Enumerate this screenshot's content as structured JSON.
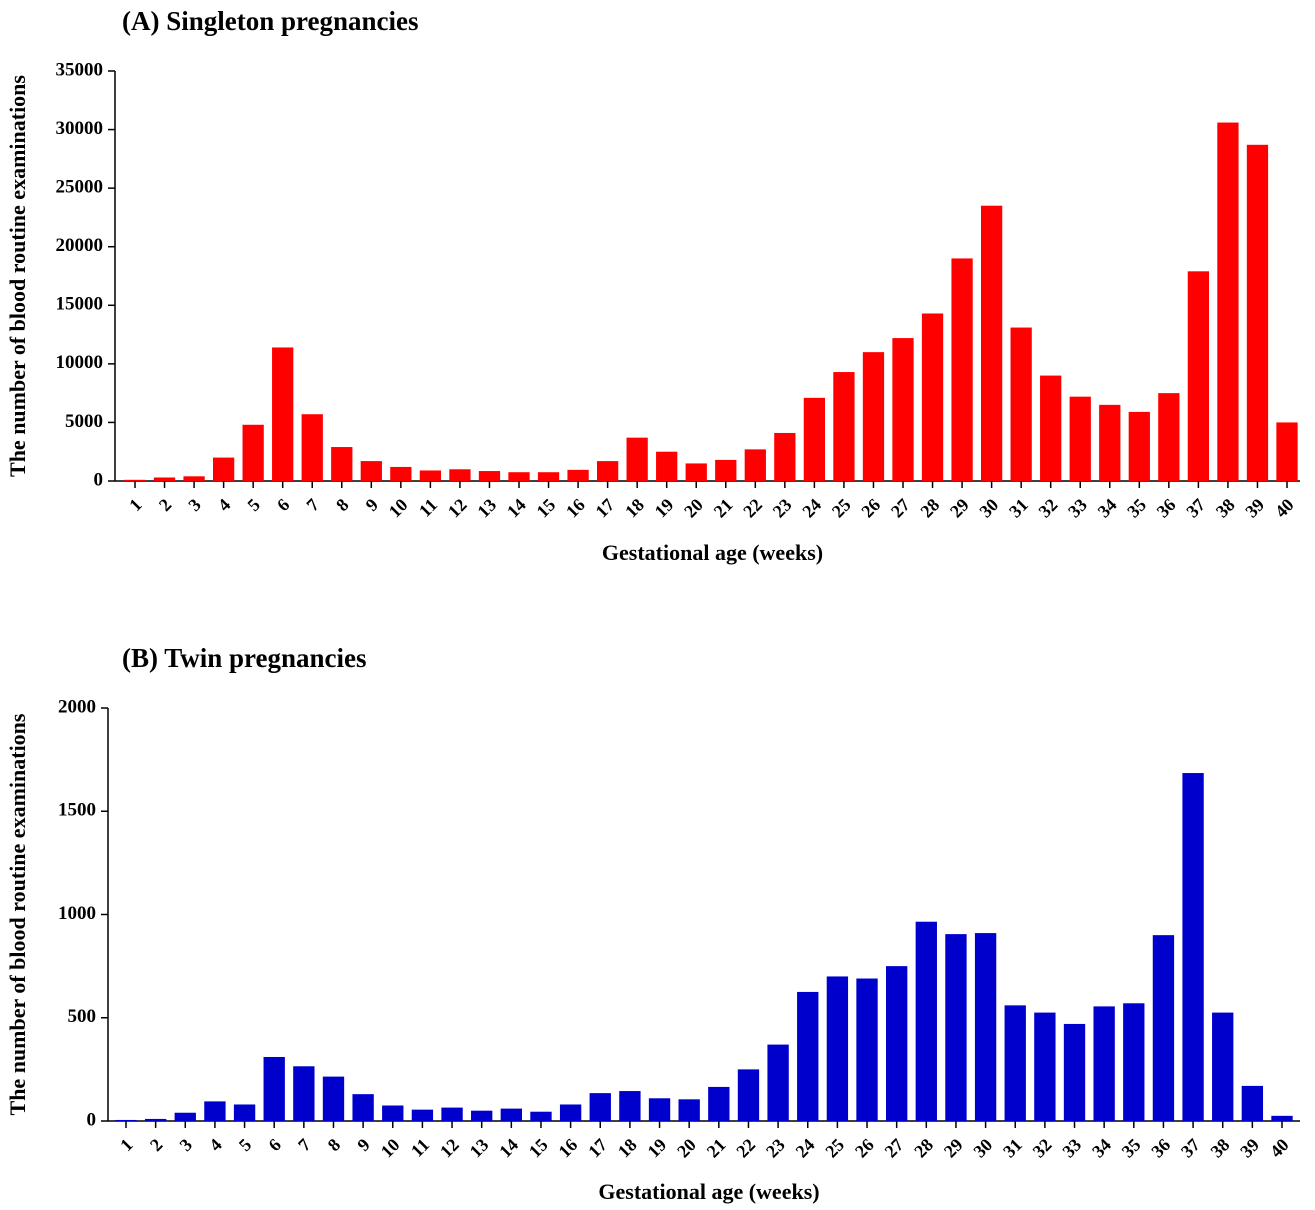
{
  "chart_data": [
    {
      "type": "bar",
      "title": "(A) Singleton pregnancies",
      "xlabel": "Gestational age (weeks)",
      "ylabel": "The number of blood routine examinations",
      "categories": [
        "1",
        "2",
        "3",
        "4",
        "5",
        "6",
        "7",
        "8",
        "9",
        "10",
        "11",
        "12",
        "13",
        "14",
        "15",
        "16",
        "17",
        "18",
        "19",
        "20",
        "21",
        "22",
        "23",
        "24",
        "25",
        "26",
        "27",
        "28",
        "29",
        "30",
        "31",
        "32",
        "33",
        "34",
        "35",
        "36",
        "37",
        "38",
        "39",
        "40"
      ],
      "values": [
        100,
        300,
        400,
        2000,
        4800,
        11400,
        5700,
        2900,
        1700,
        1200,
        900,
        1000,
        850,
        750,
        750,
        950,
        1700,
        3700,
        2500,
        1500,
        1800,
        2700,
        4100,
        7100,
        9300,
        11000,
        12200,
        14300,
        19000,
        23500,
        13100,
        9000,
        7200,
        6500,
        5900,
        7500,
        17900,
        30600,
        28700,
        5000
      ],
      "color": "#ff0000",
      "ylim": [
        0,
        35000
      ],
      "yticks": [
        0,
        5000,
        10000,
        15000,
        20000,
        25000,
        30000,
        35000
      ]
    },
    {
      "type": "bar",
      "title": "(B) Twin pregnancies",
      "xlabel": "Gestational age (weeks)",
      "ylabel": "The number of blood routine examinations",
      "categories": [
        "1",
        "2",
        "3",
        "4",
        "5",
        "6",
        "7",
        "8",
        "9",
        "10",
        "11",
        "12",
        "13",
        "14",
        "15",
        "16",
        "17",
        "18",
        "19",
        "20",
        "21",
        "22",
        "23",
        "24",
        "25",
        "26",
        "27",
        "28",
        "29",
        "30",
        "31",
        "32",
        "33",
        "34",
        "35",
        "36",
        "37",
        "38",
        "39",
        "40"
      ],
      "values": [
        5,
        10,
        40,
        95,
        80,
        310,
        265,
        215,
        130,
        75,
        55,
        65,
        50,
        60,
        45,
        80,
        135,
        145,
        110,
        105,
        165,
        250,
        370,
        625,
        700,
        690,
        750,
        965,
        905,
        910,
        560,
        525,
        470,
        555,
        570,
        900,
        1685,
        525,
        170,
        25
      ],
      "color": "#0000cc",
      "ylim": [
        0,
        2000
      ],
      "yticks": [
        0,
        500,
        1000,
        1500,
        2000
      ]
    }
  ]
}
